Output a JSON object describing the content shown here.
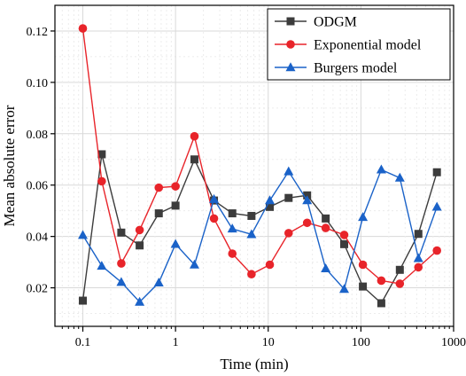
{
  "chart_data": {
    "type": "line",
    "xlabel": "Time (min)",
    "ylabel": "Mean absolute error",
    "xscale": "log",
    "xlim": [
      0.05,
      1000
    ],
    "ylim": [
      0.005,
      0.13
    ],
    "xticks": [
      0.1,
      1,
      10,
      100,
      1000
    ],
    "xtick_labels": [
      "0.1",
      "1",
      "10",
      "100",
      "1000"
    ],
    "yticks": [
      0.02,
      0.04,
      0.06,
      0.08,
      0.1,
      0.12
    ],
    "ytick_labels": [
      "0.02",
      "0.04",
      "0.06",
      "0.08",
      "0.10",
      "0.12"
    ],
    "grid": true,
    "legend_position": "top-right",
    "x": [
      0.1,
      0.16,
      0.26,
      0.41,
      0.66,
      1.0,
      1.6,
      2.6,
      4.1,
      6.6,
      10.4,
      16.6,
      26.3,
      41.7,
      66,
      105,
      166,
      263,
      417,
      661
    ],
    "series": [
      {
        "name": "ODGM",
        "color": "#3c3c3c",
        "marker": "square",
        "values": [
          0.015,
          0.072,
          0.0415,
          0.0365,
          0.049,
          0.052,
          0.07,
          0.054,
          0.049,
          0.048,
          0.0515,
          0.055,
          0.056,
          0.047,
          0.037,
          0.0205,
          0.014,
          0.027,
          0.041,
          0.065
        ]
      },
      {
        "name": "Exponential model",
        "color": "#e8242a",
        "marker": "circle",
        "values": [
          0.121,
          0.0615,
          0.0295,
          0.0425,
          0.059,
          0.0595,
          0.079,
          0.047,
          0.0333,
          0.0253,
          0.029,
          0.0413,
          0.0453,
          0.0433,
          0.0406,
          0.029,
          0.0228,
          0.0216,
          0.028,
          0.0345
        ]
      },
      {
        "name": "Burgers model",
        "color": "#1a62c8",
        "marker": "triangle",
        "values": [
          0.0405,
          0.0285,
          0.0222,
          0.0145,
          0.022,
          0.037,
          0.029,
          0.0545,
          0.043,
          0.0408,
          0.054,
          0.0653,
          0.054,
          0.0275,
          0.0195,
          0.0475,
          0.066,
          0.0628,
          0.0315,
          0.0515
        ]
      }
    ]
  }
}
